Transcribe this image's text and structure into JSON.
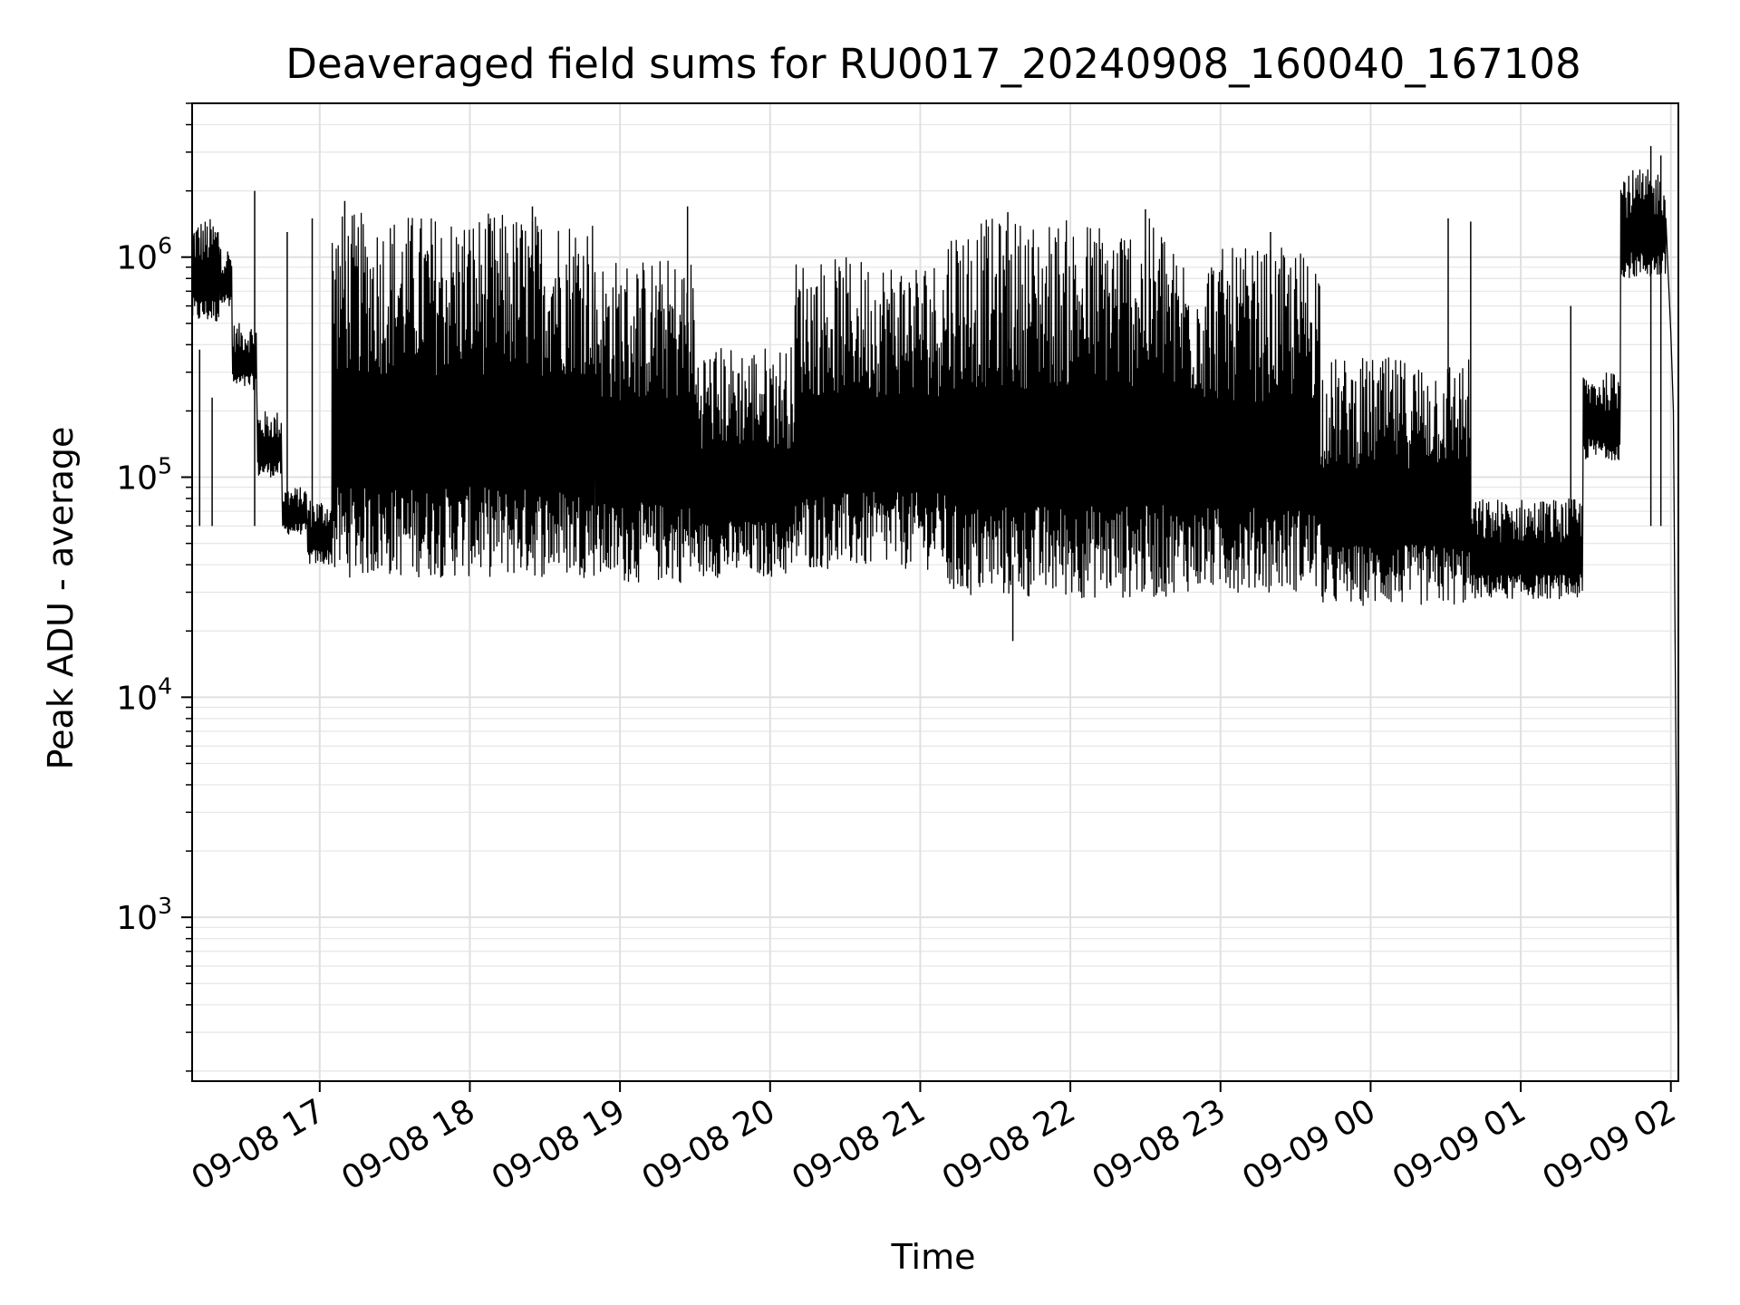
{
  "chart_data": {
    "type": "line",
    "title": "Deaveraged field sums for RU0017_20240908_160040_167108",
    "xlabel": "Time",
    "ylabel": "Peak ADU - average",
    "yscale": "log",
    "ylim": [
      180,
      5000000
    ],
    "xlim": [
      "09-08 16:09",
      "09-09 02:03"
    ],
    "grid": true,
    "line_color": "#000000",
    "x_ticks": [
      {
        "value": "09-08 17:00",
        "label": "09-08 17"
      },
      {
        "value": "09-08 18:00",
        "label": "09-08 18"
      },
      {
        "value": "09-08 19:00",
        "label": "09-08 19"
      },
      {
        "value": "09-08 20:00",
        "label": "09-08 20"
      },
      {
        "value": "09-08 21:00",
        "label": "09-08 21"
      },
      {
        "value": "09-08 22:00",
        "label": "09-08 22"
      },
      {
        "value": "09-08 23:00",
        "label": "09-08 23"
      },
      {
        "value": "09-09 00:00",
        "label": "09-09 00"
      },
      {
        "value": "09-09 01:00",
        "label": "09-09 01"
      },
      {
        "value": "09-09 02:00",
        "label": "09-09 02"
      }
    ],
    "y_ticks": [
      {
        "value": 1000,
        "base": "10",
        "exp": "3"
      },
      {
        "value": 10000,
        "base": "10",
        "exp": "4"
      },
      {
        "value": 100000,
        "base": "10",
        "exp": "5"
      },
      {
        "value": 1000000,
        "base": "10",
        "exp": "6"
      }
    ],
    "series": [
      {
        "segments": [
          {
            "start": "09-08 16:09",
            "end": "09-08 16:20",
            "high": 1500000,
            "low": 500000
          },
          {
            "start": "09-08 16:20",
            "end": "09-08 16:25",
            "high": 1100000,
            "low": 600000
          },
          {
            "start": "09-08 16:25",
            "end": "09-08 16:35",
            "high": 500000,
            "low": 250000
          },
          {
            "start": "09-08 16:35",
            "end": "09-08 16:45",
            "high": 200000,
            "low": 100000
          },
          {
            "start": "09-08 16:45",
            "end": "09-08 16:55",
            "high": 90000,
            "low": 55000
          },
          {
            "start": "09-08 16:55",
            "end": "09-08 17:05",
            "high": 80000,
            "low": 40000
          },
          {
            "start": "09-08 17:05",
            "end": "09-08 18:50",
            "high": 1600000,
            "low": 35000
          },
          {
            "start": "09-08 18:50",
            "end": "09-08 19:30",
            "high": 1000000,
            "low": 33000
          },
          {
            "start": "09-08 19:30",
            "end": "09-08 20:10",
            "high": 400000,
            "low": 35000
          },
          {
            "start": "09-08 20:10",
            "end": "09-08 21:10",
            "high": 1000000,
            "low": 38000
          },
          {
            "start": "09-08 21:10",
            "end": "09-08 22:40",
            "high": 1500000,
            "low": 28000
          },
          {
            "start": "09-08 22:40",
            "end": "09-08 23:40",
            "high": 1100000,
            "low": 30000
          },
          {
            "start": "09-08 23:40",
            "end": "09-09 00:40",
            "high": 350000,
            "low": 26000
          },
          {
            "start": "09-09 00:40",
            "end": "09-09 01:25",
            "high": 80000,
            "low": 28000
          },
          {
            "start": "09-09 01:25",
            "end": "09-09 01:40",
            "high": 300000,
            "low": 120000
          },
          {
            "start": "09-09 01:40",
            "end": "09-09 01:58",
            "high": 2500000,
            "low": 800000
          }
        ],
        "spikes": [
          {
            "t": "09-08 16:12",
            "v": 380000
          },
          {
            "t": "09-08 16:17",
            "v": 230000
          },
          {
            "t": "09-08 16:34",
            "v": 2000000
          },
          {
            "t": "09-08 16:47",
            "v": 1300000
          },
          {
            "t": "09-08 16:57",
            "v": 1500000
          },
          {
            "t": "09-08 17:10",
            "v": 1800000
          },
          {
            "t": "09-08 18:25",
            "v": 1700000
          },
          {
            "t": "09-08 19:27",
            "v": 1700000
          },
          {
            "t": "09-08 21:35",
            "v": 1600000
          },
          {
            "t": "09-08 21:37",
            "v": 18000
          },
          {
            "t": "09-08 22:30",
            "v": 1650000
          },
          {
            "t": "09-08 23:20",
            "v": 1300000
          },
          {
            "t": "09-09 00:31",
            "v": 1500000
          },
          {
            "t": "09-09 00:40",
            "v": 1450000
          },
          {
            "t": "09-09 01:20",
            "v": 600000
          },
          {
            "t": "09-09 01:52",
            "v": 3200000
          },
          {
            "t": "09-09 01:56",
            "v": 2900000
          }
        ],
        "tail": [
          {
            "t": "09-09 01:58",
            "v": 1500000
          },
          {
            "t": "09-09 01:59",
            "v": 800000
          },
          {
            "t": "09-09 02:00",
            "v": 450000
          },
          {
            "t": "09-09 02:01",
            "v": 200000
          },
          {
            "t": "09-09 02:03",
            "v": 180
          }
        ]
      }
    ]
  }
}
